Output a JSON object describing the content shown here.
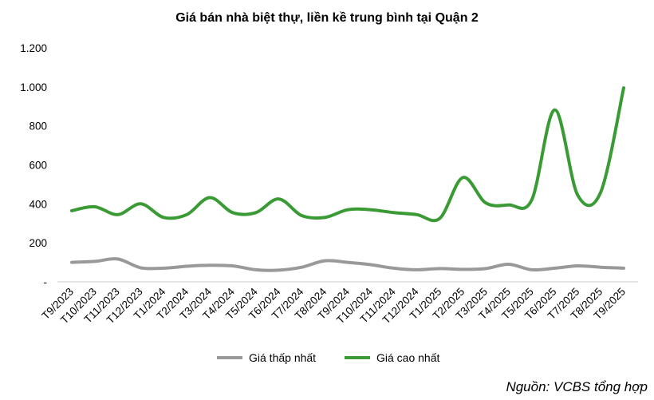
{
  "chart_data": {
    "type": "line",
    "title": "Giá bán nhà biệt thự, liền kề trung bình tại Quận 2",
    "categories": [
      "T9/2023",
      "T10/2023",
      "T11/2023",
      "T12/2023",
      "T1/2024",
      "T2/2024",
      "T3/2024",
      "T4/2024",
      "T5/2024",
      "T6/2024",
      "T7/2024",
      "T8/2024",
      "T9/2024",
      "T10/2024",
      "T11/2024",
      "T12/2024",
      "T1/2025",
      "T2/2025",
      "T3/2025",
      "T4/2025",
      "T5/2025",
      "T6/2025",
      "T7/2025",
      "T8/2025",
      "T9/2025"
    ],
    "series": [
      {
        "name": "Giá thấp nhất",
        "color": "#999999",
        "values": [
          100,
          105,
          117,
          72,
          70,
          80,
          85,
          82,
          62,
          60,
          75,
          108,
          100,
          88,
          70,
          62,
          68,
          64,
          68,
          90,
          62,
          70,
          82,
          75,
          70
        ]
      },
      {
        "name": "Giá cao nhất",
        "color": "#3a9b35",
        "values": [
          365,
          385,
          345,
          400,
          330,
          345,
          432,
          355,
          355,
          425,
          340,
          330,
          370,
          370,
          355,
          345,
          325,
          535,
          405,
          395,
          420,
          882,
          445,
          460,
          995
        ]
      }
    ],
    "y_ticks": [
      "-",
      "200",
      "400",
      "600",
      "800",
      "1.000",
      "1.200"
    ],
    "ylim": [
      0,
      1200
    ],
    "grid": false,
    "legend_position": "bottom-center"
  },
  "source_note": "Nguồn: VCBS tổng hợp"
}
